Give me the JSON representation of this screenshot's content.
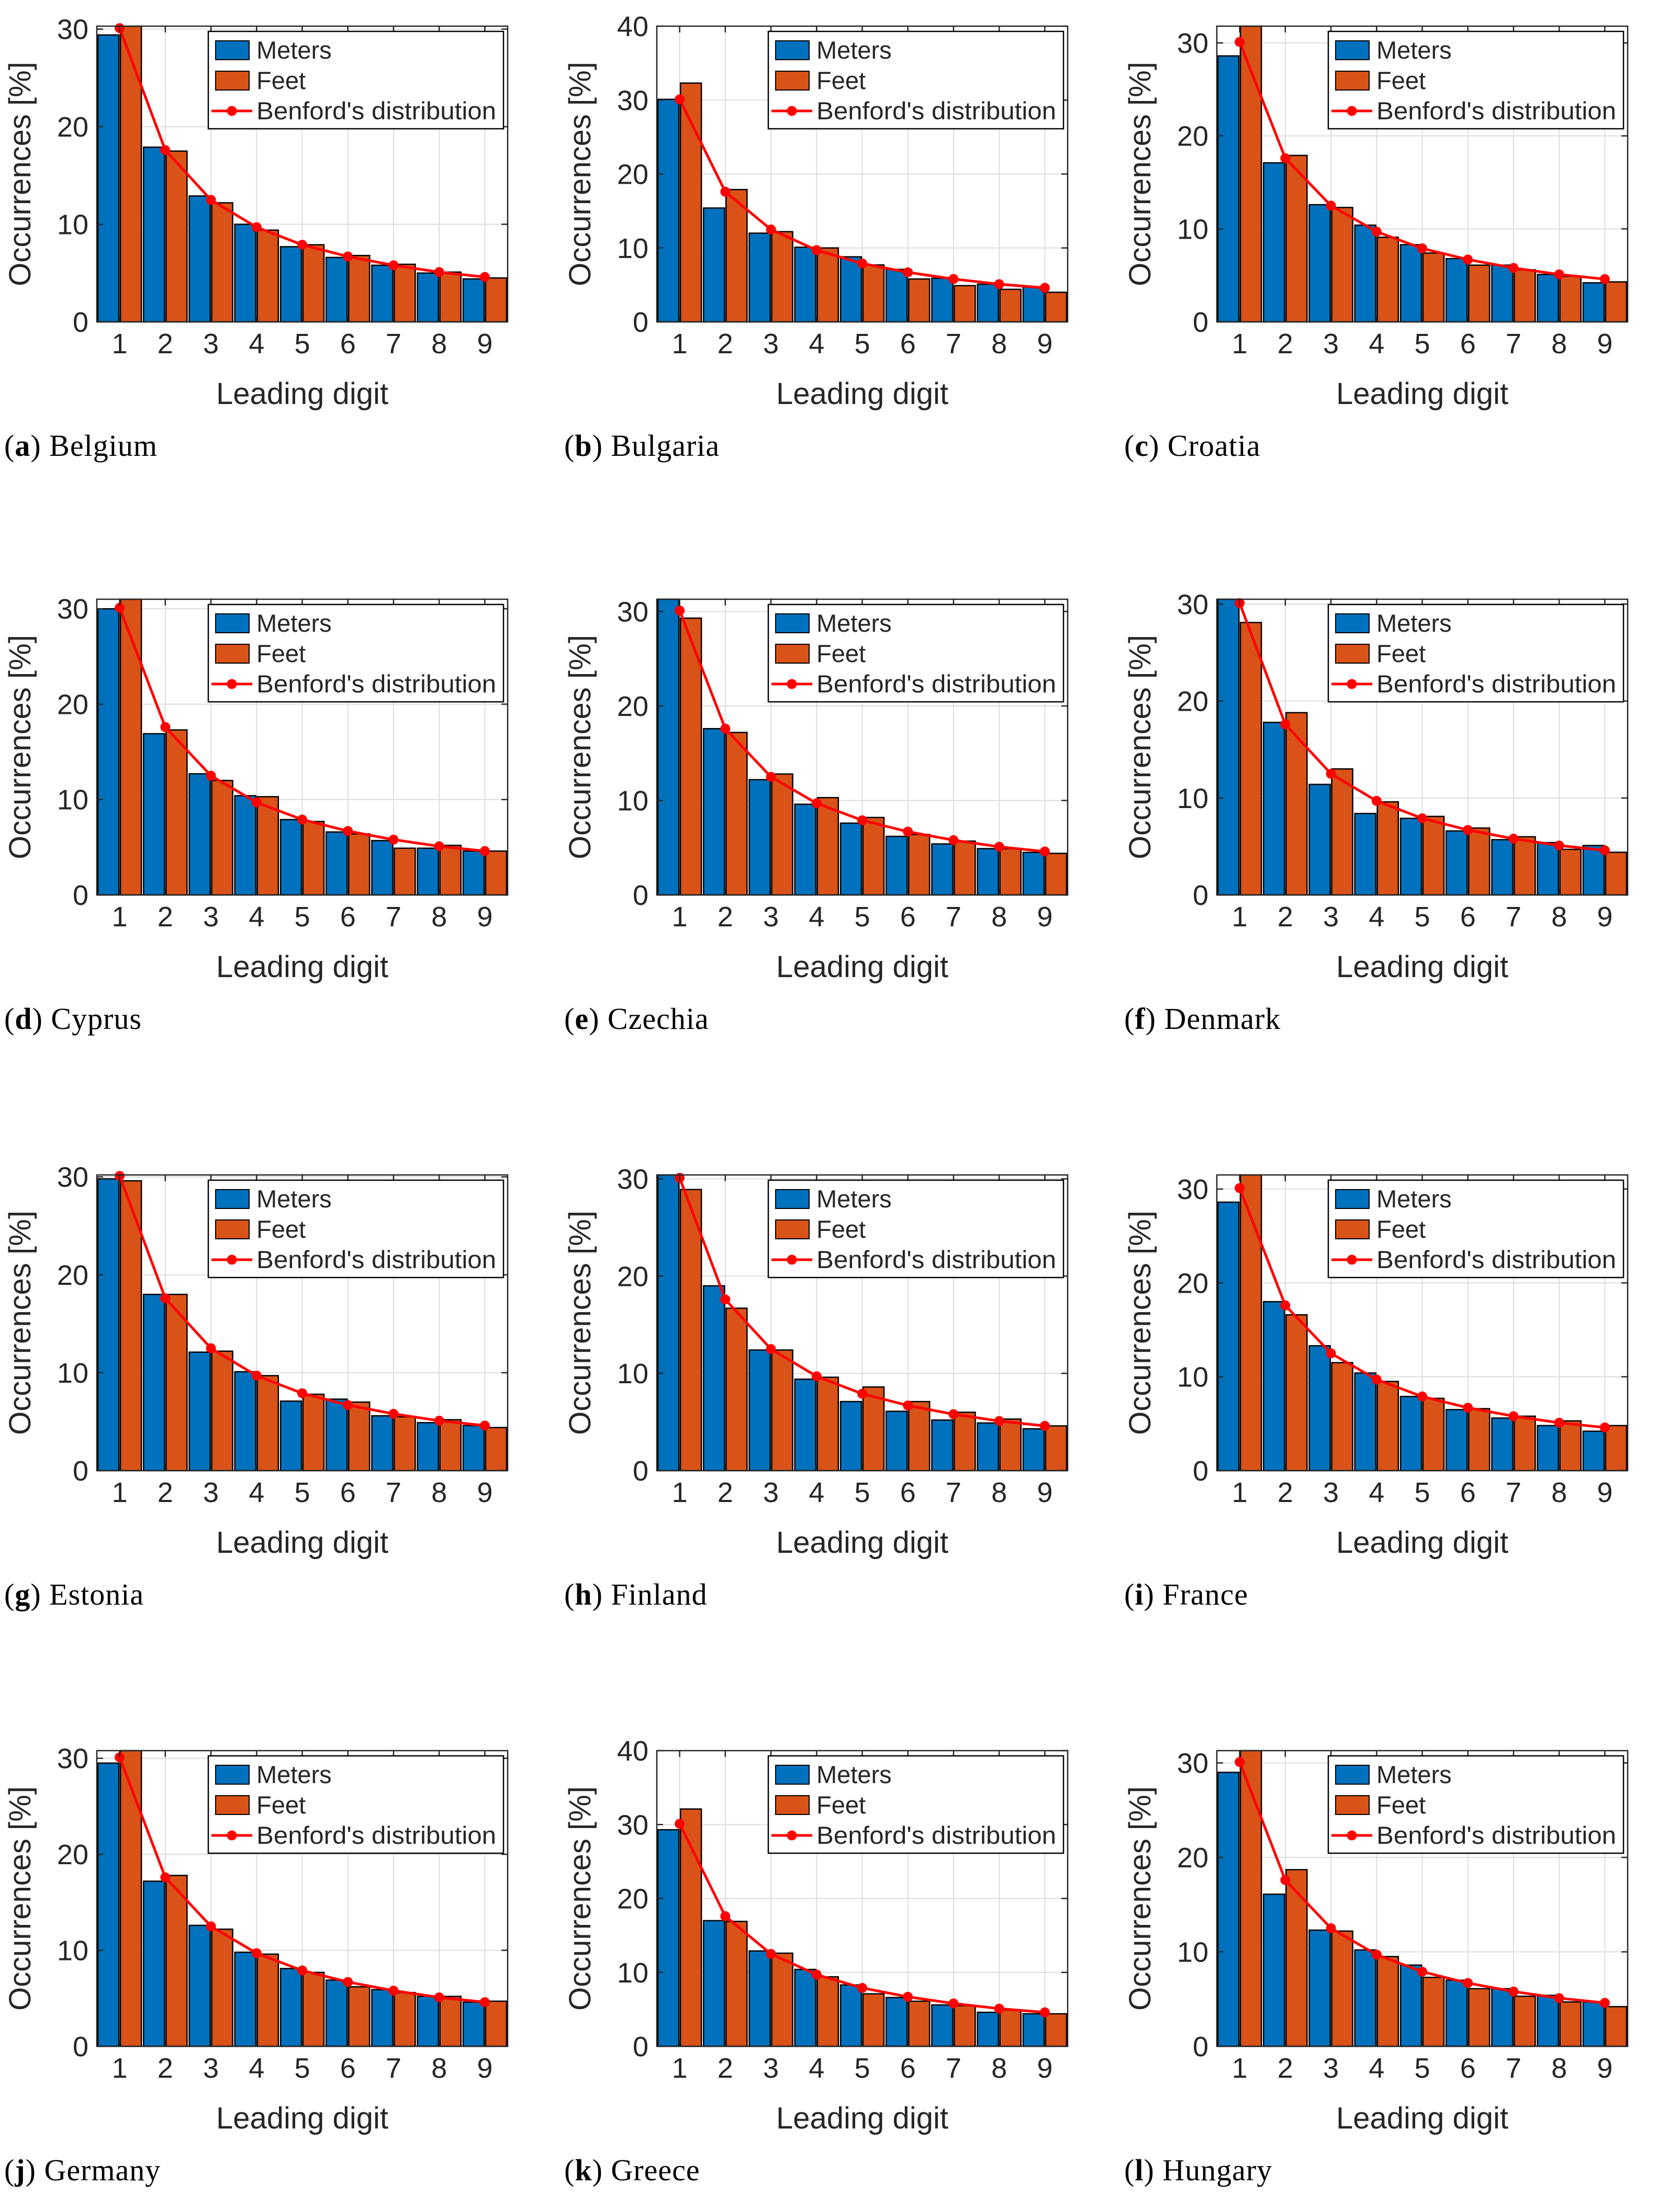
{
  "figure": {
    "ylabel": "Occurrences [%]",
    "xlabel": "Leading digit",
    "legend": [
      "Meters",
      "Feet",
      "Benford's distribution"
    ],
    "legend_position": "top-right",
    "grid": "on",
    "colors": {
      "meters": "#0072BD",
      "feet": "#D95319",
      "benford": "#FF0000",
      "axis": "#262626",
      "gridline": "#DCDCDC",
      "background": "#FFFFFF"
    }
  },
  "chart_data": {
    "type": "bar+line",
    "categories": [
      1,
      2,
      3,
      4,
      5,
      6,
      7,
      8,
      9
    ],
    "benford_series": {
      "name": "Benford's distribution",
      "values": [
        30.1,
        17.6,
        12.5,
        9.7,
        7.9,
        6.7,
        5.8,
        5.1,
        4.6
      ]
    },
    "panels": [
      {
        "label": "a",
        "country": "Belgium",
        "ylim": [
          0,
          30.3
        ],
        "yticks": [
          0,
          10,
          20,
          30
        ],
        "series": [
          {
            "name": "Meters",
            "values": [
              29.4,
              17.9,
              12.9,
              10.0,
              7.7,
              6.6,
              5.8,
              5.0,
              4.4
            ]
          },
          {
            "name": "Feet",
            "values": [
              30.9,
              17.5,
              12.2,
              9.4,
              7.9,
              6.8,
              5.9,
              5.1,
              4.5
            ]
          }
        ]
      },
      {
        "label": "b",
        "country": "Bulgaria",
        "ylim": [
          0,
          40
        ],
        "yticks": [
          0,
          10,
          20,
          30,
          40
        ],
        "series": [
          {
            "name": "Meters",
            "values": [
              30.1,
              15.4,
              12.0,
              10.1,
              8.8,
              7.1,
              5.9,
              5.1,
              4.7
            ]
          },
          {
            "name": "Feet",
            "values": [
              32.3,
              17.9,
              12.2,
              10.0,
              7.7,
              5.8,
              4.9,
              4.4,
              4.0
            ]
          }
        ]
      },
      {
        "label": "c",
        "country": "Croatia",
        "ylim": [
          0,
          31.8
        ],
        "yticks": [
          0,
          10,
          20,
          30
        ],
        "series": [
          {
            "name": "Meters",
            "values": [
              28.6,
              17.1,
              12.6,
              10.4,
              8.3,
              6.8,
              6.1,
              5.1,
              4.2
            ]
          },
          {
            "name": "Feet",
            "values": [
              33.0,
              17.9,
              12.3,
              9.1,
              7.4,
              6.1,
              5.6,
              4.9,
              4.3
            ]
          }
        ]
      },
      {
        "label": "d",
        "country": "Cyprus",
        "ylim": [
          0,
          31.0
        ],
        "yticks": [
          0,
          10,
          20,
          30
        ],
        "series": [
          {
            "name": "Meters",
            "values": [
              30.0,
              16.9,
              12.7,
              10.4,
              7.9,
              6.6,
              5.7,
              4.9,
              4.6
            ]
          },
          {
            "name": "Feet",
            "values": [
              32.0,
              17.3,
              12.0,
              10.3,
              7.7,
              6.4,
              4.9,
              5.2,
              4.6
            ]
          }
        ]
      },
      {
        "label": "e",
        "country": "Czechia",
        "ylim": [
          0,
          31.3
        ],
        "yticks": [
          0,
          10,
          20,
          30
        ],
        "series": [
          {
            "name": "Meters",
            "values": [
              32.0,
              17.6,
              12.2,
              9.6,
              7.6,
              6.2,
              5.4,
              4.9,
              4.5
            ]
          },
          {
            "name": "Feet",
            "values": [
              29.3,
              17.2,
              12.8,
              10.3,
              8.2,
              6.4,
              5.7,
              4.9,
              4.4
            ]
          }
        ]
      },
      {
        "label": "f",
        "country": "Denmark",
        "ylim": [
          0,
          30.5
        ],
        "yticks": [
          0,
          10,
          20,
          30
        ],
        "series": [
          {
            "name": "Meters",
            "values": [
              31.0,
              17.8,
              11.4,
              8.4,
              7.9,
              6.6,
              5.7,
              5.4,
              5.1
            ]
          },
          {
            "name": "Feet",
            "values": [
              28.1,
              18.8,
              13.0,
              9.6,
              8.1,
              6.9,
              6.0,
              4.7,
              4.4
            ]
          }
        ]
      },
      {
        "label": "g",
        "country": "Estonia",
        "ylim": [
          0,
          30.2
        ],
        "yticks": [
          0,
          10,
          20,
          30
        ],
        "series": [
          {
            "name": "Meters",
            "values": [
              29.8,
              18.0,
              12.1,
              10.1,
              7.1,
              7.3,
              5.6,
              4.9,
              4.6
            ]
          },
          {
            "name": "Feet",
            "values": [
              29.6,
              18.0,
              12.2,
              9.7,
              7.8,
              7.0,
              5.5,
              5.2,
              4.4
            ]
          }
        ]
      },
      {
        "label": "h",
        "country": "Finland",
        "ylim": [
          0,
          30.4
        ],
        "yticks": [
          0,
          10,
          20,
          30
        ],
        "series": [
          {
            "name": "Meters",
            "values": [
              31.0,
              19.0,
              12.4,
              9.4,
              7.1,
              6.1,
              5.2,
              4.9,
              4.3
            ]
          },
          {
            "name": "Feet",
            "values": [
              28.9,
              16.7,
              12.4,
              9.6,
              8.6,
              7.1,
              6.0,
              5.3,
              4.6
            ]
          }
        ]
      },
      {
        "label": "i",
        "country": "France",
        "ylim": [
          0,
          31.5
        ],
        "yticks": [
          0,
          10,
          20,
          30
        ],
        "series": [
          {
            "name": "Meters",
            "values": [
              28.6,
              18.0,
              13.3,
              10.4,
              7.9,
              6.5,
              5.6,
              4.8,
              4.2
            ]
          },
          {
            "name": "Feet",
            "values": [
              33.0,
              16.6,
              11.5,
              9.5,
              7.7,
              6.6,
              5.8,
              5.3,
              4.8
            ]
          }
        ]
      },
      {
        "label": "j",
        "country": "Germany",
        "ylim": [
          0,
          30.8
        ],
        "yticks": [
          0,
          10,
          20,
          30
        ],
        "series": [
          {
            "name": "Meters",
            "values": [
              29.5,
              17.2,
              12.6,
              9.8,
              8.1,
              6.9,
              5.9,
              5.2,
              4.6
            ]
          },
          {
            "name": "Feet",
            "values": [
              32.0,
              17.8,
              12.2,
              9.6,
              7.7,
              6.2,
              5.6,
              5.2,
              4.7
            ]
          }
        ]
      },
      {
        "label": "k",
        "country": "Greece",
        "ylim": [
          0,
          40
        ],
        "yticks": [
          0,
          10,
          20,
          30,
          40
        ],
        "series": [
          {
            "name": "Meters",
            "values": [
              29.3,
              17.0,
              12.9,
              10.4,
              8.3,
              6.6,
              5.6,
              4.6,
              4.4
            ]
          },
          {
            "name": "Feet",
            "values": [
              32.1,
              16.9,
              12.6,
              9.4,
              7.1,
              6.1,
              5.5,
              4.9,
              4.4
            ]
          }
        ]
      },
      {
        "label": "l",
        "country": "Hungary",
        "ylim": [
          0,
          31.3
        ],
        "yticks": [
          0,
          10,
          20,
          30
        ],
        "series": [
          {
            "name": "Meters",
            "values": [
              29.0,
              16.1,
              12.3,
              10.2,
              8.6,
              7.0,
              6.1,
              5.4,
              4.7
            ]
          },
          {
            "name": "Feet",
            "values": [
              33.0,
              18.7,
              12.2,
              9.5,
              7.3,
              6.1,
              5.3,
              4.7,
              4.2
            ]
          }
        ]
      }
    ]
  }
}
